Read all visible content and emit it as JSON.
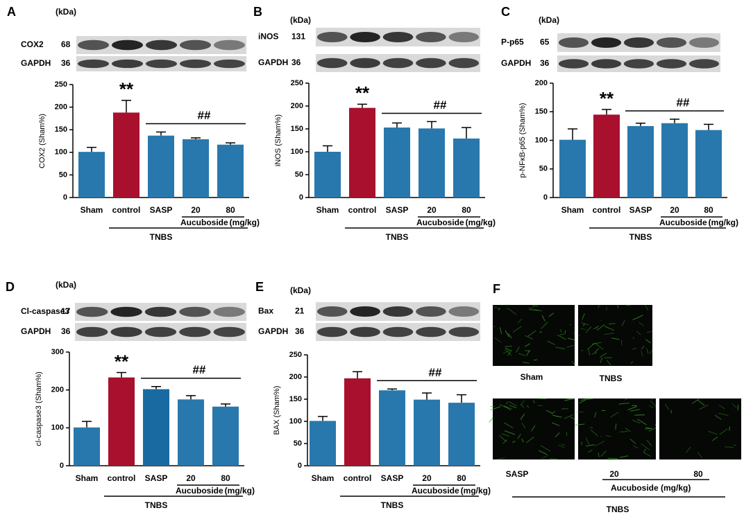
{
  "chart_data": [
    {
      "type": "bar",
      "panel": "A",
      "kda_header": "(kDa)",
      "blots": [
        {
          "name": "COX2",
          "kda": "68"
        },
        {
          "name": "GAPDH",
          "kda": "36"
        }
      ],
      "ylabel": "COX2 (Sham%)",
      "categories": [
        "Sham",
        "control",
        "SASP",
        "20",
        "80"
      ],
      "values": [
        101,
        188,
        137,
        129,
        117
      ],
      "errors": [
        10,
        27,
        8,
        3,
        4
      ],
      "colors": [
        "#2878ad",
        "#a8102e",
        "#2878ad",
        "#2878ad",
        "#2878ad"
      ],
      "ylim": [
        0,
        250
      ],
      "yticks": [
        0,
        50,
        100,
        150,
        200,
        250
      ],
      "significance": "**",
      "hash": "##",
      "group_label": "Aucuboside",
      "unit": "(mg/kg)",
      "treatment": "TNBS"
    },
    {
      "type": "bar",
      "panel": "B",
      "kda_header": "(kDa)",
      "blots": [
        {
          "name": "iNOS",
          "kda": "131"
        },
        {
          "name": "GAPDH",
          "kda": "36"
        }
      ],
      "ylabel": "iNOS (Sham%)",
      "categories": [
        "Sham",
        "control",
        "SASP",
        "20",
        "80"
      ],
      "values": [
        100,
        196,
        153,
        151,
        129
      ],
      "errors": [
        13,
        8,
        10,
        15,
        24
      ],
      "colors": [
        "#2878ad",
        "#a8102e",
        "#2878ad",
        "#2878ad",
        "#2878ad"
      ],
      "ylim": [
        0,
        250
      ],
      "yticks": [
        0,
        50,
        100,
        150,
        200,
        250
      ],
      "significance": "**",
      "hash": "##",
      "group_label": "Aucuboside",
      "unit": "(mg/kg)",
      "treatment": "TNBS"
    },
    {
      "type": "bar",
      "panel": "C",
      "kda_header": "(kDa)",
      "blots": [
        {
          "name": "P-p65",
          "kda": "65"
        },
        {
          "name": "GAPDH",
          "kda": "36"
        }
      ],
      "ylabel": "p-NFκB-p65 (Sham%)",
      "categories": [
        "Sham",
        "control",
        "SASP",
        "20",
        "80"
      ],
      "values": [
        101,
        145,
        125,
        130,
        118
      ],
      "errors": [
        19,
        9,
        5,
        7,
        10
      ],
      "colors": [
        "#2878ad",
        "#a8102e",
        "#2878ad",
        "#2878ad",
        "#2878ad"
      ],
      "ylim": [
        0,
        200
      ],
      "yticks": [
        0,
        50,
        100,
        150,
        200
      ],
      "significance": "**",
      "hash": "##",
      "group_label": "Aucuboside",
      "unit": "(mg/kg)",
      "treatment": "TNBS"
    },
    {
      "type": "bar",
      "panel": "D",
      "kda_header": "(kDa)",
      "blots": [
        {
          "name": "Cl-caspase3",
          "kda": "17"
        },
        {
          "name": "GAPDH",
          "kda": "36"
        }
      ],
      "ylabel": "cl-caspase3 (Sham%)",
      "categories": [
        "Sham",
        "control",
        "SASP",
        "20",
        "80"
      ],
      "values": [
        101,
        233,
        202,
        175,
        156
      ],
      "errors": [
        16,
        13,
        7,
        10,
        7
      ],
      "colors": [
        "#2878ad",
        "#a8102e",
        "#1a6aa2",
        "#2878ad",
        "#2878ad"
      ],
      "ylim": [
        0,
        300
      ],
      "yticks": [
        0,
        100,
        200,
        300
      ],
      "significance": "**",
      "hash": "##",
      "group_label": "Aucuboside",
      "unit": "(mg/kg)",
      "treatment": "TNBS"
    },
    {
      "type": "bar",
      "panel": "E",
      "kda_header": "(kDa)",
      "blots": [
        {
          "name": "Bax",
          "kda": "21"
        },
        {
          "name": "GAPDH",
          "kda": "36"
        }
      ],
      "ylabel": "BAX (Sham%)",
      "categories": [
        "Sham",
        "control",
        "SASP",
        "20",
        "80"
      ],
      "values": [
        101,
        197,
        170,
        149,
        142
      ],
      "errors": [
        10,
        15,
        3,
        15,
        18
      ],
      "colors": [
        "#2878ad",
        "#a8102e",
        "#2878ad",
        "#2878ad",
        "#2878ad"
      ],
      "ylim": [
        0,
        250
      ],
      "yticks": [
        0,
        50,
        100,
        150,
        200,
        250
      ],
      "hash": "##",
      "group_label": "Aucuboside",
      "unit": "(mg/kg)",
      "treatment": "TNBS"
    }
  ],
  "panel_f": {
    "panel": "F",
    "labels": [
      "Sham",
      "TNBS",
      "SASP",
      "20",
      "80"
    ],
    "group_label": "Aucuboside",
    "unit": "(mg/kg)",
    "treatment": "TNBS"
  }
}
